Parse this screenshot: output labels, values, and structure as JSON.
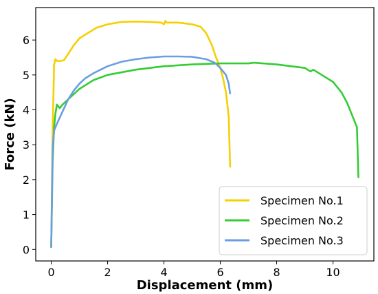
{
  "chart_data": {
    "type": "line",
    "title": "",
    "xlabel": "Displacement (mm)",
    "ylabel": "Force (kN)",
    "xlim": [
      -0.55,
      11.45
    ],
    "ylim": [
      -0.33,
      6.93
    ],
    "xticks": [
      0,
      2,
      4,
      6,
      8,
      10
    ],
    "yticks": [
      0,
      1,
      2,
      3,
      4,
      5,
      6
    ],
    "grid": false,
    "legend_position": "lower-right",
    "series": [
      {
        "name": "Specimen No.1",
        "color": "#f5d000",
        "x": [
          0.0,
          0.05,
          0.1,
          0.15,
          0.2,
          0.3,
          0.45,
          0.6,
          0.8,
          1.0,
          1.3,
          1.6,
          2.0,
          2.5,
          3.0,
          3.5,
          3.9,
          4.0,
          4.05,
          4.1,
          4.5,
          5.0,
          5.3,
          5.5,
          5.7,
          5.85,
          6.0,
          6.1,
          6.2,
          6.3,
          6.35
        ],
        "y": [
          0.05,
          3.4,
          5.3,
          5.45,
          5.4,
          5.4,
          5.42,
          5.6,
          5.85,
          6.05,
          6.2,
          6.35,
          6.45,
          6.52,
          6.53,
          6.52,
          6.5,
          6.45,
          6.55,
          6.5,
          6.5,
          6.45,
          6.38,
          6.2,
          5.85,
          5.5,
          5.2,
          4.9,
          4.5,
          3.8,
          2.35
        ]
      },
      {
        "name": "Specimen No.2",
        "color": "#33cc33",
        "x": [
          0.0,
          0.05,
          0.1,
          0.15,
          0.2,
          0.25,
          0.3,
          0.4,
          0.6,
          0.8,
          1.0,
          1.5,
          2.0,
          3.0,
          4.0,
          5.0,
          6.0,
          7.0,
          7.2,
          8.0,
          9.0,
          9.2,
          9.3,
          9.6,
          10.0,
          10.3,
          10.5,
          10.7,
          10.85,
          10.9
        ],
        "y": [
          0.05,
          2.5,
          3.5,
          3.9,
          4.15,
          4.1,
          4.05,
          4.15,
          4.3,
          4.45,
          4.6,
          4.85,
          5.0,
          5.15,
          5.25,
          5.3,
          5.33,
          5.33,
          5.35,
          5.3,
          5.2,
          5.1,
          5.15,
          5.0,
          4.8,
          4.5,
          4.2,
          3.8,
          3.5,
          2.05
        ]
      },
      {
        "name": "Specimen No.3",
        "color": "#6a9de4",
        "x": [
          0.0,
          0.05,
          0.1,
          0.2,
          0.4,
          0.6,
          0.8,
          1.0,
          1.2,
          1.5,
          2.0,
          2.5,
          3.0,
          3.5,
          4.0,
          4.5,
          5.0,
          5.5,
          5.8,
          6.0,
          6.2,
          6.3,
          6.35
        ],
        "y": [
          0.05,
          2.9,
          3.4,
          3.6,
          3.95,
          4.3,
          4.55,
          4.75,
          4.9,
          5.05,
          5.25,
          5.38,
          5.45,
          5.5,
          5.53,
          5.53,
          5.52,
          5.45,
          5.35,
          5.2,
          5.0,
          4.75,
          4.45
        ]
      }
    ]
  }
}
